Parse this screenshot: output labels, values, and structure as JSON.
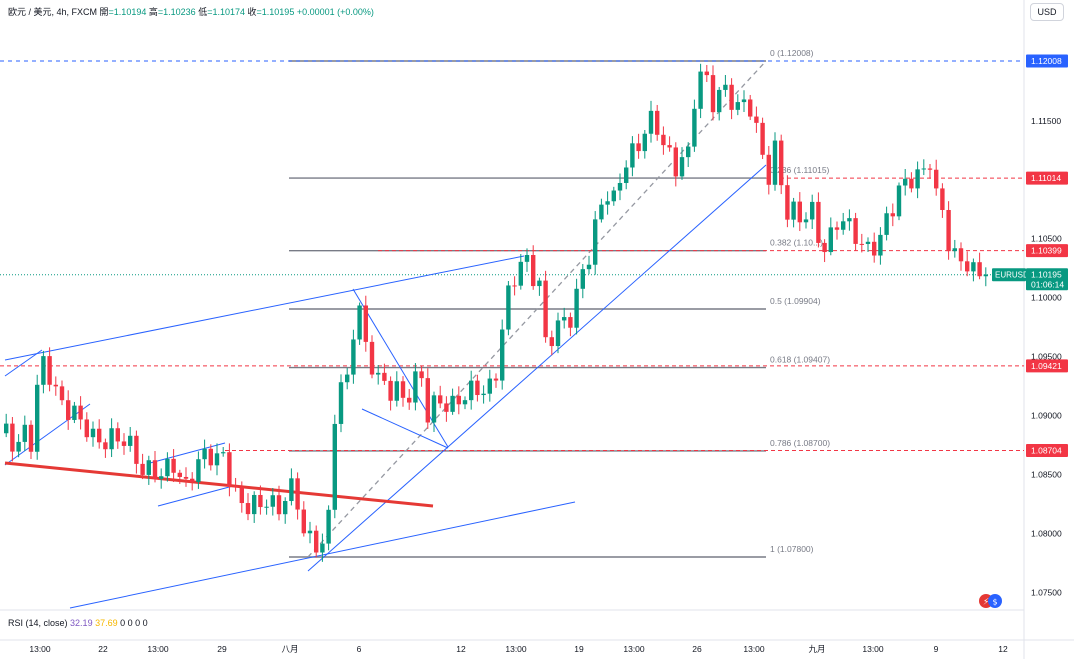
{
  "header": {
    "symbol": "欧元 / 美元, 4h, FXCM",
    "open_label": "開",
    "open": "=1.10194",
    "high_label": "高",
    "high": "=1.10236",
    "low_label": "低",
    "low": "=1.10174",
    "close_label": "收",
    "close": "=1.10195",
    "change": "+0.00001 (+0.00%)"
  },
  "currency": "USD",
  "colors": {
    "up": "#089981",
    "down": "#f23645",
    "trend": "#2962ff",
    "fib": "#787b86",
    "resistance": "#e53935",
    "current": "#089981"
  },
  "price_axis": {
    "min": 1.0725,
    "max": 1.1245,
    "ticks": [
      "1.11500",
      "1.10500",
      "1.10000",
      "1.09500",
      "1.09000",
      "1.08500",
      "1.08000",
      "1.07500"
    ],
    "tick_values": [
      1.115,
      1.105,
      1.1,
      1.095,
      1.09,
      1.085,
      1.08,
      1.075
    ]
  },
  "price_labels": [
    {
      "text": "1.12008",
      "value": 1.12008,
      "color": "#2962ff"
    },
    {
      "text": "1.11014",
      "value": 1.11014,
      "color": "#f23645"
    },
    {
      "text": "1.10399",
      "value": 1.10399,
      "color": "#f23645"
    },
    {
      "text": "1.09421",
      "value": 1.09421,
      "color": "#f23645"
    },
    {
      "text": "1.08704",
      "value": 1.08704,
      "color": "#f23645"
    }
  ],
  "current_price": {
    "symbol": "EURUSD",
    "price": "1.10195",
    "value": 1.10195,
    "countdown": "01:06:14"
  },
  "fib_levels": [
    {
      "label": "0 (1.12008)",
      "value": 1.12008
    },
    {
      "label": "0.236 (1.11015)",
      "value": 1.11015
    },
    {
      "label": "0.382 (1.10...)",
      "value": 1.10399
    },
    {
      "label": "0.5 (1.09904)",
      "value": 1.09904
    },
    {
      "label": "0.618 (1.09407)",
      "value": 1.09407
    },
    {
      "label": "0.786 (1.08700)",
      "value": 1.087
    },
    {
      "label": "1 (1.07800)",
      "value": 1.078
    }
  ],
  "time_axis": [
    "13:00",
    "22",
    "13:00",
    "29",
    "八月",
    "6",
    "12",
    "13:00",
    "19",
    "13:00",
    "26",
    "13:00",
    "九月",
    "13:00",
    "9",
    "12"
  ],
  "rsi": {
    "title": "RSI (14, close)",
    "value1": "32.19",
    "value2": "37.69",
    "zeros": "0 0 0 0"
  },
  "icons": {
    "logo": "tradingview-logo-icon"
  },
  "chart_data": {
    "type": "candlestick",
    "title": "欧元 / 美元, 4h, FXCM",
    "ylim": [
      1.0725,
      1.1245
    ],
    "close_path": [
      [
        0,
        1.0885
      ],
      [
        12,
        1.0878
      ],
      [
        20,
        1.0882
      ],
      [
        24,
        1.0895
      ],
      [
        30,
        1.0875
      ],
      [
        38,
        1.0945
      ],
      [
        46,
        1.0935
      ],
      [
        54,
        1.092
      ],
      [
        60,
        1.0915
      ],
      [
        70,
        1.0905
      ],
      [
        80,
        1.089
      ],
      [
        90,
        1.0878
      ],
      [
        100,
        1.0882
      ],
      [
        112,
        1.0885
      ],
      [
        122,
        1.0875
      ],
      [
        132,
        1.0865
      ],
      [
        140,
        1.0855
      ],
      [
        150,
        1.086
      ],
      [
        160,
        1.0848
      ],
      [
        172,
        1.0855
      ],
      [
        182,
        1.0838
      ],
      [
        192,
        1.0862
      ],
      [
        204,
        1.0866
      ],
      [
        214,
        1.0858
      ],
      [
        222,
        1.0865
      ],
      [
        230,
        1.0845
      ],
      [
        238,
        1.0828
      ],
      [
        248,
        1.0822
      ],
      [
        258,
        1.0818
      ],
      [
        266,
        1.0832
      ],
      [
        276,
        1.0822
      ],
      [
        284,
        1.0838
      ],
      [
        292,
        1.0835
      ],
      [
        298,
        1.0808
      ],
      [
        304,
        1.0795
      ],
      [
        310,
        1.0792
      ],
      [
        318,
        1.0795
      ],
      [
        326,
        1.0808
      ],
      [
        332,
        1.0895
      ],
      [
        338,
        1.0925
      ],
      [
        344,
        1.0915
      ],
      [
        350,
        1.0965
      ],
      [
        356,
        1.1005
      ],
      [
        362,
        1.0965
      ],
      [
        370,
        1.0945
      ],
      [
        378,
        1.0925
      ],
      [
        386,
        1.0915
      ],
      [
        394,
        1.0925
      ],
      [
        402,
        1.0915
      ],
      [
        410,
        1.093
      ],
      [
        418,
        1.0935
      ],
      [
        426,
        1.0895
      ],
      [
        434,
        1.091
      ],
      [
        442,
        1.0915
      ],
      [
        452,
        1.0912
      ],
      [
        460,
        1.0915
      ],
      [
        468,
        1.0915
      ],
      [
        476,
        1.092
      ],
      [
        484,
        1.0925
      ],
      [
        492,
        1.093
      ],
      [
        498,
        1.0965
      ],
      [
        504,
        1.0995
      ],
      [
        510,
        1.1005
      ],
      [
        516,
        1.1025
      ],
      [
        524,
        1.1032
      ],
      [
        532,
        1.1022
      ],
      [
        538,
        1.1015
      ],
      [
        544,
        1.0955
      ],
      [
        552,
        1.0968
      ],
      [
        560,
        1.0975
      ],
      [
        568,
        1.0985
      ],
      [
        574,
        1.1005
      ],
      [
        580,
        1.1025
      ],
      [
        588,
        1.1038
      ],
      [
        596,
        1.1065
      ],
      [
        604,
        1.1088
      ],
      [
        612,
        1.1085
      ],
      [
        618,
        1.1105
      ],
      [
        626,
        1.1125
      ],
      [
        634,
        1.1118
      ],
      [
        642,
        1.1138
      ],
      [
        650,
        1.115
      ],
      [
        658,
        1.1145
      ],
      [
        666,
        1.1125
      ],
      [
        674,
        1.1108
      ],
      [
        682,
        1.1118
      ],
      [
        688,
        1.1115
      ],
      [
        694,
        1.119
      ],
      [
        700,
        1.1195
      ],
      [
        706,
        1.1185
      ],
      [
        712,
        1.1165
      ],
      [
        720,
        1.1175
      ],
      [
        728,
        1.1165
      ],
      [
        736,
        1.116
      ],
      [
        744,
        1.1172
      ],
      [
        750,
        1.1165
      ],
      [
        756,
        1.1135
      ],
      [
        762,
        1.1112
      ],
      [
        768,
        1.1095
      ],
      [
        774,
        1.1128
      ],
      [
        780,
        1.109
      ],
      [
        786,
        1.1075
      ],
      [
        792,
        1.1078
      ],
      [
        800,
        1.1065
      ],
      [
        806,
        1.1072
      ],
      [
        812,
        1.1065
      ],
      [
        818,
        1.104
      ],
      [
        826,
        1.1045
      ],
      [
        832,
        1.1068
      ],
      [
        840,
        1.107
      ],
      [
        848,
        1.1055
      ],
      [
        856,
        1.1045
      ],
      [
        864,
        1.1038
      ],
      [
        870,
        1.1048
      ],
      [
        876,
        1.105
      ],
      [
        882,
        1.1065
      ],
      [
        888,
        1.107
      ],
      [
        896,
        1.1085
      ],
      [
        902,
        1.1092
      ],
      [
        908,
        1.1102
      ],
      [
        916,
        1.1108
      ],
      [
        922,
        1.1112
      ],
      [
        928,
        1.1118
      ],
      [
        934,
        1.1082
      ],
      [
        940,
        1.107
      ],
      [
        946,
        1.1045
      ],
      [
        952,
        1.1035
      ],
      [
        958,
        1.1038
      ],
      [
        966,
        1.1032
      ],
      [
        972,
        1.102
      ],
      [
        978,
        1.1018
      ],
      [
        984,
        1.10195
      ]
    ]
  }
}
